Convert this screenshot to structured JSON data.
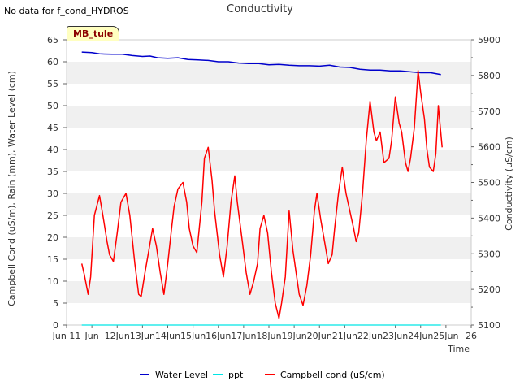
{
  "header": {
    "no_data": "No data for f_cond_HYDROS",
    "site_badge": "MB_tule"
  },
  "chart_data": {
    "type": "line",
    "title": "Conductivity",
    "xlabel": "Time",
    "ylabel_left": "Campbell Cond (uS/m), Rain (mm), Water Level (cm)",
    "ylabel_right": "Conductivity (uS/cm)",
    "ylim_left": [
      0,
      65
    ],
    "ylim_right": [
      5100,
      5900
    ],
    "xlim": [
      10.0,
      26.0
    ],
    "y_ticks_left": [
      0,
      5,
      10,
      15,
      20,
      25,
      30,
      35,
      40,
      45,
      50,
      55,
      60,
      65
    ],
    "y_ticks_right": [
      5100,
      5200,
      5300,
      5400,
      5500,
      5600,
      5700,
      5800,
      5900
    ],
    "x_ticks": [
      {
        "x": 10,
        "label": "Jun 11"
      },
      {
        "x": 11,
        "label": "Jun"
      },
      {
        "x": 12,
        "label": "12Jun"
      },
      {
        "x": 13,
        "label": "13Jun"
      },
      {
        "x": 14,
        "label": "14Jun"
      },
      {
        "x": 15,
        "label": "15Jun"
      },
      {
        "x": 16,
        "label": "16Jun"
      },
      {
        "x": 17,
        "label": "17Jun"
      },
      {
        "x": 18,
        "label": "18Jun"
      },
      {
        "x": 19,
        "label": "19Jun"
      },
      {
        "x": 20,
        "label": "20Jun"
      },
      {
        "x": 21,
        "label": "21Jun"
      },
      {
        "x": 22,
        "label": "22Jun"
      },
      {
        "x": 23,
        "label": "23Jun"
      },
      {
        "x": 24,
        "label": "24Jun"
      },
      {
        "x": 25,
        "label": "25Jun"
      },
      {
        "x": 26,
        "label": "26"
      }
    ],
    "series": [
      {
        "name": "Water Level",
        "color": "#0000cc",
        "x": [
          10.6,
          11.0,
          11.3,
          11.8,
          12.2,
          12.6,
          13.0,
          13.3,
          13.6,
          14.0,
          14.4,
          14.8,
          15.2,
          15.6,
          16.0,
          16.4,
          16.8,
          17.2,
          17.6,
          18.0,
          18.4,
          18.8,
          19.2,
          19.6,
          20.0,
          20.4,
          20.8,
          21.2,
          21.6,
          22.0,
          22.4,
          22.8,
          23.2,
          23.6,
          24.0,
          24.4,
          24.8
        ],
        "y": [
          62.2,
          62.1,
          61.8,
          61.7,
          61.7,
          61.4,
          61.2,
          61.3,
          60.9,
          60.8,
          60.9,
          60.5,
          60.4,
          60.3,
          60.0,
          60.0,
          59.7,
          59.6,
          59.6,
          59.3,
          59.4,
          59.2,
          59.1,
          59.1,
          59.0,
          59.2,
          58.8,
          58.7,
          58.3,
          58.1,
          58.1,
          57.9,
          57.9,
          57.7,
          57.5,
          57.5,
          57.1
        ]
      },
      {
        "name": "ppt",
        "color": "#00e5e5",
        "x": [
          10.6,
          24.8
        ],
        "y": [
          0.0,
          0.0
        ]
      },
      {
        "name": "Campbell cond (uS/cm)",
        "color": "#ff0000",
        "x": [
          10.6,
          10.7,
          10.85,
          10.95,
          11.1,
          11.3,
          11.45,
          11.6,
          11.7,
          11.85,
          12.0,
          12.15,
          12.35,
          12.5,
          12.7,
          12.85,
          12.95,
          13.1,
          13.25,
          13.4,
          13.55,
          13.7,
          13.85,
          14.0,
          14.15,
          14.25,
          14.4,
          14.6,
          14.75,
          14.85,
          15.0,
          15.15,
          15.35,
          15.45,
          15.6,
          15.75,
          15.85,
          16.05,
          16.2,
          16.35,
          16.5,
          16.65,
          16.75,
          16.95,
          17.1,
          17.25,
          17.4,
          17.55,
          17.65,
          17.8,
          17.95,
          18.1,
          18.25,
          18.4,
          18.5,
          18.65,
          18.8,
          18.95,
          19.1,
          19.2,
          19.35,
          19.5,
          19.65,
          19.8,
          19.9,
          20.05,
          20.2,
          20.35,
          20.5,
          20.6,
          20.75,
          20.9,
          21.05,
          21.2,
          21.35,
          21.45,
          21.55,
          21.7,
          21.85,
          22.0,
          22.15,
          22.25,
          22.4,
          22.55,
          22.75,
          22.85,
          23.0,
          23.15,
          23.25,
          23.4,
          23.5,
          23.6,
          23.75,
          23.9,
          24.0,
          24.15,
          24.25,
          24.35,
          24.5,
          24.6,
          24.7,
          24.85
        ],
        "y": [
          14.0,
          11.5,
          7.0,
          11.0,
          25.0,
          29.5,
          24.5,
          19.0,
          16.0,
          14.5,
          21.0,
          28.0,
          30.0,
          25.0,
          14.0,
          7.0,
          6.5,
          12.0,
          17.0,
          22.0,
          18.0,
          12.0,
          7.0,
          14.0,
          22.0,
          27.0,
          31.0,
          32.5,
          28.0,
          22.0,
          18.0,
          16.5,
          28.0,
          38.0,
          40.5,
          33.0,
          26.0,
          16.0,
          11.0,
          18.0,
          28.0,
          34.0,
          28.0,
          19.0,
          12.0,
          7.0,
          10.0,
          14.0,
          22.0,
          25.0,
          21.0,
          12.0,
          5.0,
          1.5,
          5.0,
          11.0,
          26.0,
          17.0,
          11.0,
          7.0,
          4.5,
          9.0,
          16.0,
          26.0,
          30.0,
          24.0,
          19.0,
          14.0,
          16.0,
          22.0,
          30.0,
          36.0,
          30.0,
          26.0,
          22.0,
          19.0,
          21.0,
          30.0,
          42.0,
          51.0,
          44.0,
          42.0,
          44.0,
          37.0,
          38.0,
          42.0,
          52.0,
          46.0,
          44.0,
          37.0,
          35.0,
          38.0,
          45.0,
          58.0,
          53.0,
          47.0,
          40.0,
          36.0,
          35.0,
          39.0,
          50.0,
          40.5
        ]
      }
    ],
    "legend": [
      {
        "label": "Water Level",
        "color": "#0000cc"
      },
      {
        "label": "ppt",
        "color": "#00e5e5"
      },
      {
        "label": "Campbell cond (uS/cm)",
        "color": "#ff0000"
      }
    ]
  }
}
